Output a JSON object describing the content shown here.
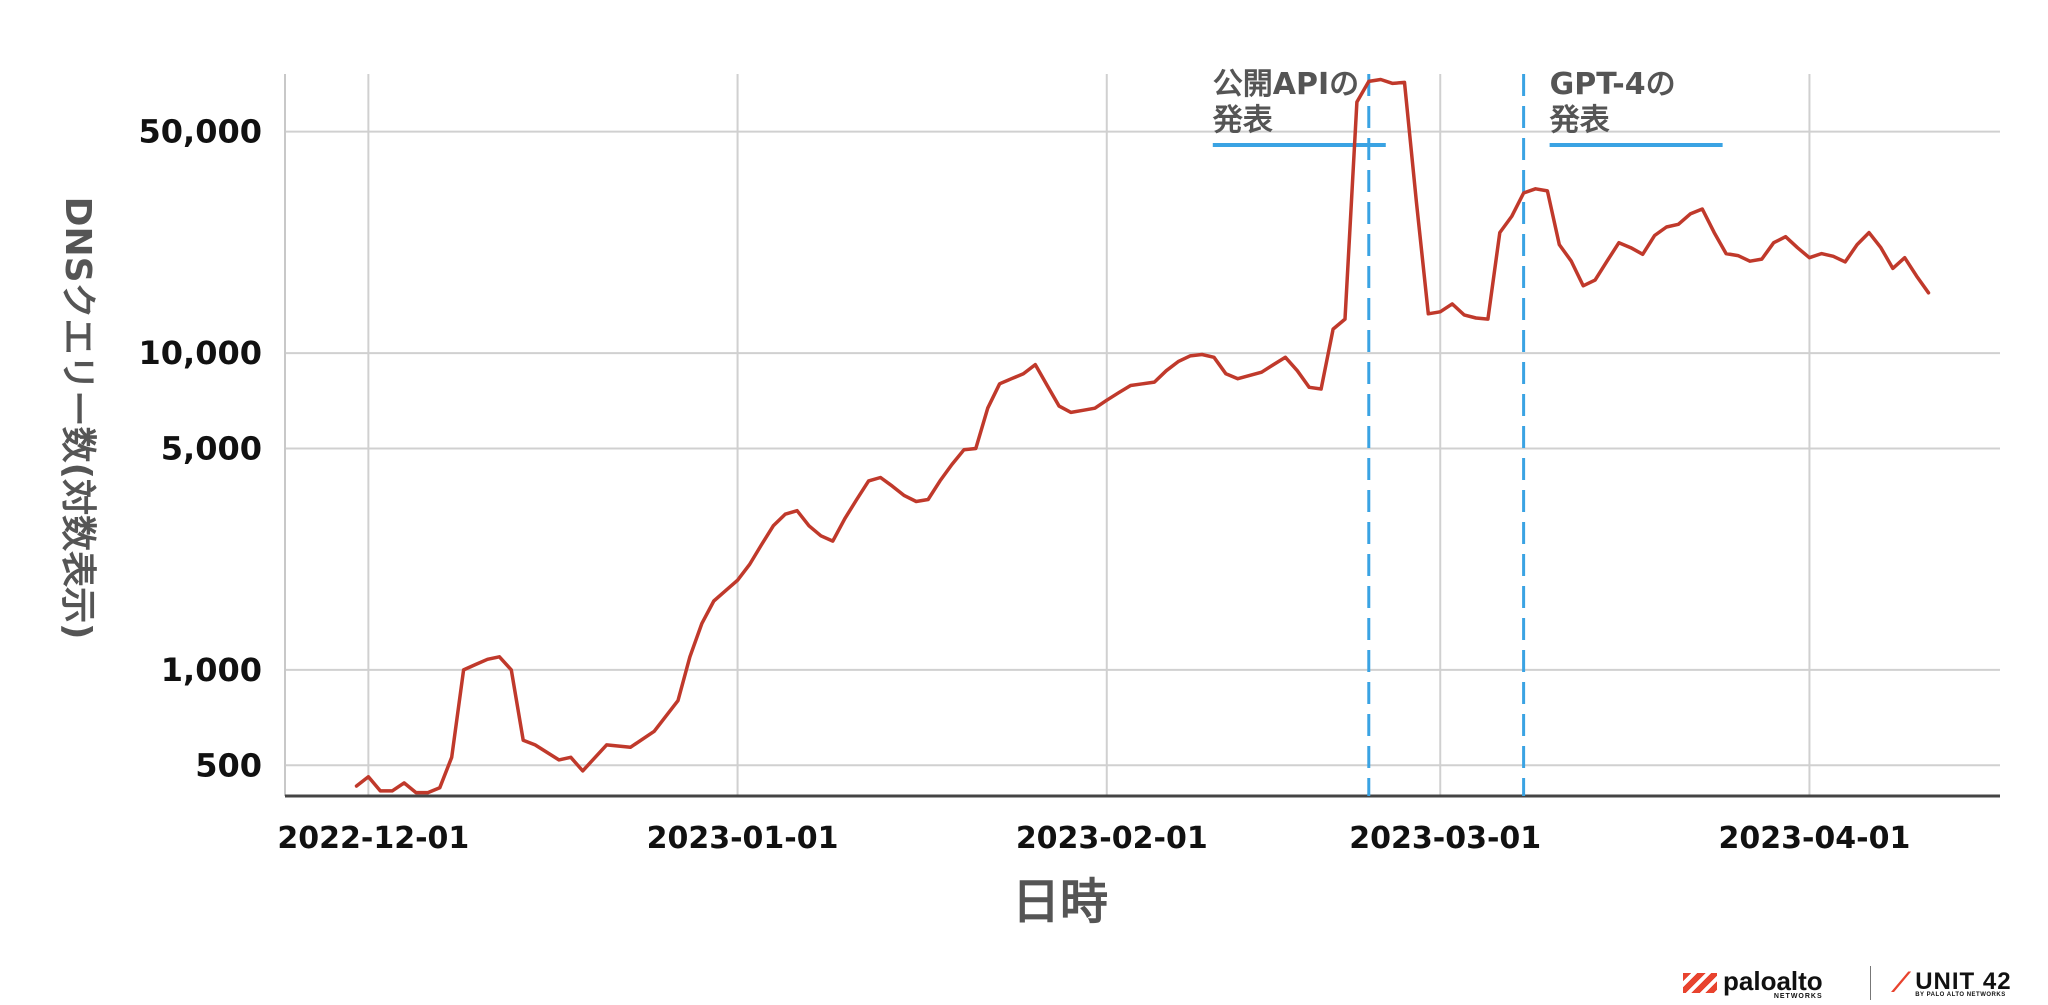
{
  "chart_data": {
    "type": "line",
    "title": "",
    "xlabel": "日時",
    "ylabel": "DNSクエリー数(対数表示)",
    "y_scale": "log",
    "ylim": [
      400,
      76000
    ],
    "xlim": [
      "2022-11-24",
      "2023-04-17"
    ],
    "grid": true,
    "y_ticks": [
      {
        "value": 500,
        "label": "500"
      },
      {
        "value": 1000,
        "label": "1,000"
      },
      {
        "value": 5000,
        "label": "5,000"
      },
      {
        "value": 10000,
        "label": "10,000"
      },
      {
        "value": 50000,
        "label": "50,000"
      }
    ],
    "x_ticks": [
      {
        "date": "2022-12-01",
        "label": "2022-12-01"
      },
      {
        "date": "2023-01-01",
        "label": "2023-01-01"
      },
      {
        "date": "2023-02-01",
        "label": "2023-02-01"
      },
      {
        "date": "2023-03-01",
        "label": "2023-03-01"
      },
      {
        "date": "2023-04-01",
        "label": "2023-04-01"
      }
    ],
    "series": [
      {
        "color": "#c0392b",
        "points": [
          [
            "2022-11-30",
            430
          ],
          [
            "2022-12-01",
            460
          ],
          [
            "2022-12-02",
            415
          ],
          [
            "2022-12-03",
            415
          ],
          [
            "2022-12-04",
            440
          ],
          [
            "2022-12-05",
            410
          ],
          [
            "2022-12-06",
            410
          ],
          [
            "2022-12-07",
            425
          ],
          [
            "2022-12-08",
            530
          ],
          [
            "2022-12-09",
            1000
          ],
          [
            "2022-12-10",
            1040
          ],
          [
            "2022-12-11",
            1080
          ],
          [
            "2022-12-12",
            1100
          ],
          [
            "2022-12-13",
            1000
          ],
          [
            "2022-12-14",
            600
          ],
          [
            "2022-12-15",
            580
          ],
          [
            "2022-12-17",
            520
          ],
          [
            "2022-12-18",
            530
          ],
          [
            "2022-12-19",
            480
          ],
          [
            "2022-12-21",
            580
          ],
          [
            "2022-12-23",
            570
          ],
          [
            "2022-12-25",
            640
          ],
          [
            "2022-12-27",
            800
          ],
          [
            "2022-12-28",
            1100
          ],
          [
            "2022-12-29",
            1400
          ],
          [
            "2022-12-30",
            1650
          ],
          [
            "2022-12-31",
            1780
          ],
          [
            "2023-01-01",
            1920
          ],
          [
            "2023-01-02",
            2150
          ],
          [
            "2023-01-03",
            2480
          ],
          [
            "2023-01-04",
            2850
          ],
          [
            "2023-01-05",
            3100
          ],
          [
            "2023-01-06",
            3180
          ],
          [
            "2023-01-07",
            2850
          ],
          [
            "2023-01-08",
            2650
          ],
          [
            "2023-01-09",
            2550
          ],
          [
            "2023-01-10",
            3000
          ],
          [
            "2023-01-11",
            3450
          ],
          [
            "2023-01-12",
            3950
          ],
          [
            "2023-01-13",
            4050
          ],
          [
            "2023-01-14",
            3800
          ],
          [
            "2023-01-15",
            3550
          ],
          [
            "2023-01-16",
            3400
          ],
          [
            "2023-01-17",
            3450
          ],
          [
            "2023-01-18",
            3950
          ],
          [
            "2023-01-19",
            4450
          ],
          [
            "2023-01-20",
            4950
          ],
          [
            "2023-01-21",
            5000
          ],
          [
            "2023-01-22",
            6700
          ],
          [
            "2023-01-23",
            8000
          ],
          [
            "2023-01-24",
            8300
          ],
          [
            "2023-01-25",
            8600
          ],
          [
            "2023-01-26",
            9200
          ],
          [
            "2023-01-27",
            7900
          ],
          [
            "2023-01-28",
            6800
          ],
          [
            "2023-01-29",
            6500
          ],
          [
            "2023-01-30",
            6600
          ],
          [
            "2023-01-31",
            6700
          ],
          [
            "2023-02-01",
            7100
          ],
          [
            "2023-02-02",
            7500
          ],
          [
            "2023-02-03",
            7900
          ],
          [
            "2023-02-04",
            8000
          ],
          [
            "2023-02-05",
            8100
          ],
          [
            "2023-02-06",
            8800
          ],
          [
            "2023-02-07",
            9400
          ],
          [
            "2023-02-08",
            9800
          ],
          [
            "2023-02-09",
            9900
          ],
          [
            "2023-02-10",
            9700
          ],
          [
            "2023-02-11",
            8600
          ],
          [
            "2023-02-12",
            8300
          ],
          [
            "2023-02-13",
            8500
          ],
          [
            "2023-02-14",
            8700
          ],
          [
            "2023-02-15",
            9200
          ],
          [
            "2023-02-16",
            9700
          ],
          [
            "2023-02-17",
            8800
          ],
          [
            "2023-02-18",
            7800
          ],
          [
            "2023-02-19",
            7700
          ],
          [
            "2023-02-20",
            11900
          ],
          [
            "2023-02-21",
            12800
          ],
          [
            "2023-02-22",
            62000
          ],
          [
            "2023-02-23",
            72000
          ],
          [
            "2023-02-24",
            73000
          ],
          [
            "2023-02-25",
            71000
          ],
          [
            "2023-02-26",
            71500
          ],
          [
            "2023-02-27",
            30000
          ],
          [
            "2023-02-28",
            13300
          ],
          [
            "2023-03-01",
            13500
          ],
          [
            "2023-03-02",
            14300
          ],
          [
            "2023-03-03",
            13200
          ],
          [
            "2023-03-04",
            12900
          ],
          [
            "2023-03-05",
            12800
          ],
          [
            "2023-03-06",
            24000
          ],
          [
            "2023-03-07",
            27000
          ],
          [
            "2023-03-08",
            32000
          ],
          [
            "2023-03-09",
            33000
          ],
          [
            "2023-03-10",
            32500
          ],
          [
            "2023-03-11",
            22000
          ],
          [
            "2023-03-12",
            19500
          ],
          [
            "2023-03-13",
            16300
          ],
          [
            "2023-03-14",
            17000
          ],
          [
            "2023-03-15",
            19500
          ],
          [
            "2023-03-16",
            22300
          ],
          [
            "2023-03-17",
            21500
          ],
          [
            "2023-03-18",
            20500
          ],
          [
            "2023-03-19",
            23500
          ],
          [
            "2023-03-20",
            25000
          ],
          [
            "2023-03-21",
            25500
          ],
          [
            "2023-03-22",
            27500
          ],
          [
            "2023-03-23",
            28500
          ],
          [
            "2023-03-24",
            24000
          ],
          [
            "2023-03-25",
            20600
          ],
          [
            "2023-03-26",
            20300
          ],
          [
            "2023-03-27",
            19500
          ],
          [
            "2023-03-28",
            19800
          ],
          [
            "2023-03-29",
            22300
          ],
          [
            "2023-03-30",
            23300
          ],
          [
            "2023-03-31",
            21500
          ],
          [
            "2023-04-01",
            20000
          ],
          [
            "2023-04-02",
            20600
          ],
          [
            "2023-04-03",
            20200
          ],
          [
            "2023-04-04",
            19400
          ],
          [
            "2023-04-05",
            22000
          ],
          [
            "2023-04-06",
            24000
          ],
          [
            "2023-04-07",
            21500
          ],
          [
            "2023-04-08",
            18500
          ],
          [
            "2023-04-09",
            20000
          ],
          [
            "2023-04-10",
            17500
          ],
          [
            "2023-04-11",
            15500
          ]
        ]
      }
    ],
    "annotations": [
      {
        "date": "2023-02-23",
        "label_line1": "公開APIの",
        "label_line2": "発表",
        "color": "#3aa3e3"
      },
      {
        "date": "2023-03-08",
        "label_line1": "GPT-4の",
        "label_line2": "発表",
        "color": "#3aa3e3"
      }
    ]
  },
  "branding": {
    "paloalto": "paloalto",
    "paloalto_sub": "NETWORKS",
    "unit42": "UNIT 42",
    "unit42_sub": "BY PALO ALTO NETWORKS"
  },
  "colors": {
    "line": "#c0392b",
    "annotation": "#3aa3e3",
    "grid": "#d0d0d0",
    "axis": "#444444"
  }
}
